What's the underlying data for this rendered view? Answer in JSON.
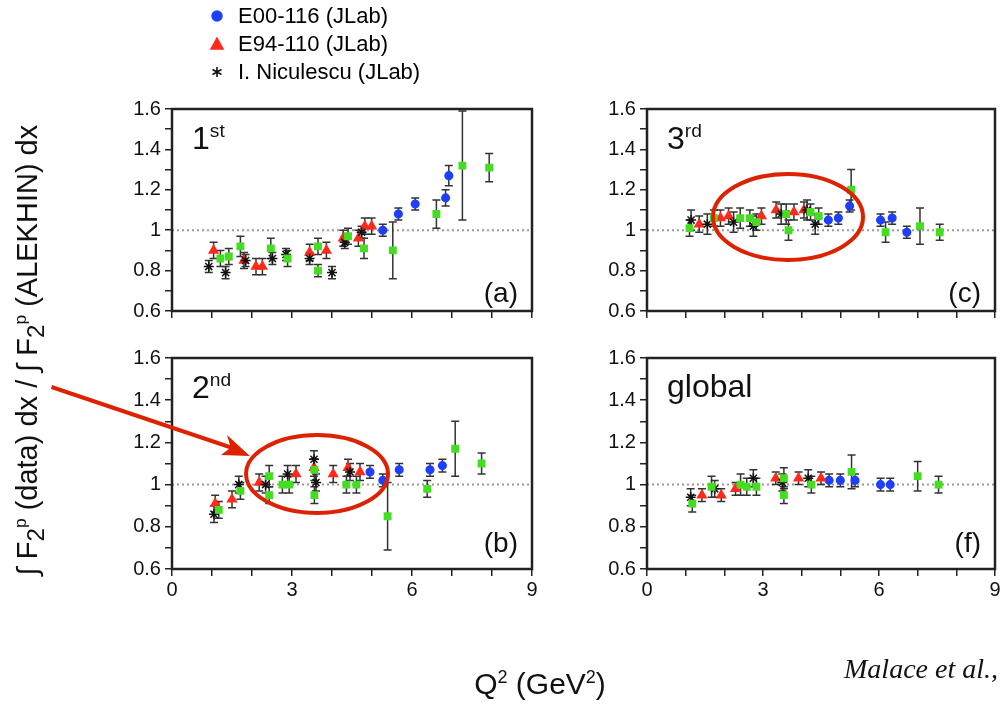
{
  "chart_data": [
    {
      "type": "scatter",
      "ylabel": "∫ F$_{2}$$^{p}$ (data) dx / ∫ F$_{2}$$^{p}$ (ALEKHIN) dx",
      "annotations": [
        "1$^{st}$",
        "(a)"
      ],
      "legend": "top",
      "tick_labels": "y",
      "grid": false,
      "xlim": [
        0,
        9
      ],
      "xticks": [
        0,
        {
          "value": 1,
          "label": null
        },
        {
          "value": 2,
          "label": null
        },
        3,
        {
          "value": 4,
          "label": null
        },
        {
          "value": 5,
          "label": null
        },
        6,
        {
          "value": 7,
          "label": null
        },
        {
          "value": 8,
          "label": null
        },
        9
      ],
      "ylim": [
        0.6,
        1.6
      ],
      "yticks": [
        0.6,
        {
          "value": 0.7,
          "label": null
        },
        0.8,
        {
          "value": 0.9,
          "label": null
        },
        1,
        {
          "value": 1.1,
          "label": null
        },
        1.2,
        {
          "value": 1.3,
          "label": null
        },
        1.4,
        {
          "value": 1.5,
          "label": null
        },
        1.6
      ],
      "ref_lines": [
        {
          "axis": "y",
          "value": 1,
          "line_style": "dotted",
          "color": "#999999"
        }
      ],
      "series": [
        {
          "name": "E00-116 (JLab)",
          "color": "#1f3fff",
          "marker": "circle",
          "x": [
            5.27,
            5.66,
            6.08,
            6.84,
            6.92
          ],
          "values": [
            1.0,
            1.08,
            1.13,
            1.16,
            1.27
          ],
          "errors": [
            0.03,
            0.03,
            0.03,
            0.04,
            0.05
          ]
        },
        {
          "name": "E94-110 (JLab)",
          "color": "#ff2a1a",
          "marker": "triangle",
          "x": [
            1.04,
            1.8,
            2.1,
            2.26,
            3.44,
            3.86,
            4.28,
            4.66,
            4.82,
            4.99
          ],
          "values": [
            0.9,
            0.85,
            0.82,
            0.82,
            0.89,
            0.9,
            0.96,
            0.96,
            1.02,
            1.02
          ],
          "errors": [
            0.04,
            0.04,
            0.04,
            0.04,
            0.04,
            0.04,
            0.04,
            0.04,
            0.04,
            0.04
          ]
        },
        {
          "name": "I. Niculescu (JLab)",
          "color": "#111111",
          "marker": "cross",
          "x": [
            0.92,
            1.34,
            1.84,
            2.51,
            2.85,
            3.44,
            4.0,
            4.32,
            4.74
          ],
          "values": [
            0.82,
            0.79,
            0.85,
            0.86,
            0.88,
            0.86,
            0.79,
            0.94,
            0.99
          ],
          "errors": [
            0.03,
            0.03,
            0.03,
            0.03,
            0.03,
            0.03,
            0.03,
            0.03,
            0.03
          ]
        },
        {
          "color": "#44dd22",
          "marker": "square",
          "x": [
            1.21,
            1.42,
            1.71,
            2.47,
            2.89,
            3.65,
            4.4,
            4.8,
            5.52,
            7.26
          ],
          "values": [
            0.86,
            0.87,
            0.92,
            0.91,
            0.86,
            0.92,
            0.97,
            0.91,
            0.9,
            1.32
          ],
          "errors": [
            0.04,
            0.04,
            0.05,
            0.05,
            0.04,
            0.04,
            0.04,
            0.05,
            0.14,
            0.27
          ]
        },
        {
          "color": "#44dd22",
          "marker": "square",
          "x": [
            3.65,
            6.61,
            7.93
          ],
          "values": [
            0.8,
            1.08,
            1.31
          ],
          "errors": [
            0.03,
            0.07,
            0.07
          ]
        }
      ]
    },
    {
      "type": "scatter",
      "annotations": [
        "3$^{rd}$",
        "(c)"
      ],
      "legend": false,
      "tick_labels": "y",
      "grid": false,
      "xlim": [
        0,
        9
      ],
      "xticks": [
        0,
        {
          "value": 1,
          "label": null
        },
        {
          "value": 2,
          "label": null
        },
        3,
        {
          "value": 4,
          "label": null
        },
        {
          "value": 5,
          "label": null
        },
        6,
        {
          "value": 7,
          "label": null
        },
        {
          "value": 8,
          "label": null
        },
        9
      ],
      "ylim": [
        0.6,
        1.6
      ],
      "yticks": [
        0.6,
        {
          "value": 0.7,
          "label": null
        },
        0.8,
        {
          "value": 0.9,
          "label": null
        },
        1,
        {
          "value": 1.1,
          "label": null
        },
        1.2,
        {
          "value": 1.3,
          "label": null
        },
        1.4,
        {
          "value": 1.5,
          "label": null
        },
        1.6
      ],
      "ref_lines": [
        {
          "axis": "y",
          "value": 1,
          "line_style": "dotted",
          "color": "#999999"
        }
      ],
      "series": [
        {
          "color": "#1f3fff",
          "marker": "circle",
          "x": [
            4.69,
            4.95,
            5.24,
            6.04,
            6.34,
            6.72
          ],
          "values": [
            1.05,
            1.06,
            1.12,
            1.05,
            1.06,
            0.99
          ],
          "errors": [
            0.03,
            0.03,
            0.03,
            0.03,
            0.03,
            0.03
          ]
        },
        {
          "color": "#ff2a1a",
          "marker": "triangle",
          "x": [
            1.35,
            1.9,
            2.11,
            2.96,
            3.34,
            3.8,
            4.06
          ],
          "values": [
            1.03,
            1.06,
            1.07,
            1.07,
            1.1,
            1.09,
            1.1
          ],
          "errors": [
            0.04,
            0.04,
            0.04,
            0.04,
            0.04,
            0.04,
            0.04
          ]
        },
        {
          "color": "#111111",
          "marker": "cross",
          "x": [
            1.14,
            1.56,
            2.24,
            2.75,
            3.47,
            4.14,
            4.35
          ],
          "values": [
            1.05,
            1.03,
            1.04,
            1.02,
            1.08,
            1.1,
            1.03
          ],
          "errors": [
            0.05,
            0.05,
            0.05,
            0.05,
            0.05,
            0.05,
            0.05
          ]
        },
        {
          "color": "#44dd22",
          "marker": "square",
          "x": [
            1.1,
            1.73,
            2.41,
            2.66,
            2.83,
            3.6,
            4.23,
            4.44,
            5.28,
            7.06
          ],
          "values": [
            1.01,
            1.06,
            1.06,
            1.06,
            1.04,
            1.08,
            1.09,
            1.07,
            1.2,
            1.02
          ],
          "errors": [
            0.04,
            0.04,
            0.05,
            0.04,
            0.04,
            0.05,
            0.04,
            0.04,
            0.1,
            0.09
          ]
        },
        {
          "color": "#44dd22",
          "marker": "square",
          "x": [
            3.66,
            6.17,
            7.57
          ],
          "values": [
            1.0,
            0.99,
            0.99
          ],
          "errors": [
            0.05,
            0.05,
            0.04
          ]
        }
      ]
    },
    {
      "type": "scatter",
      "xlabel": "Q$^{2}$ (GeV$^{2}$)",
      "annotations": [
        "2$^{nd}$",
        "(b)"
      ],
      "legend": false,
      "grid": false,
      "xlim": [
        0,
        9
      ],
      "xticks": [
        0,
        {
          "value": 1,
          "label": null
        },
        {
          "value": 2,
          "label": null
        },
        3,
        {
          "value": 4,
          "label": null
        },
        {
          "value": 5,
          "label": null
        },
        6,
        {
          "value": 7,
          "label": null
        },
        {
          "value": 8,
          "label": null
        },
        9
      ],
      "ylim": [
        0.6,
        1.6
      ],
      "yticks": [
        0.6,
        {
          "value": 0.7,
          "label": null
        },
        0.8,
        {
          "value": 0.9,
          "label": null
        },
        1,
        {
          "value": 1.1,
          "label": null
        },
        1.2,
        {
          "value": 1.3,
          "label": null
        },
        1.4,
        {
          "value": 1.5,
          "label": null
        },
        1.6
      ],
      "ref_lines": [
        {
          "axis": "y",
          "value": 1,
          "line_style": "dotted",
          "color": "#999999"
        }
      ],
      "series": [
        {
          "color": "#1f3fff",
          "marker": "circle",
          "x": [
            4.95,
            5.27,
            5.68,
            6.45,
            6.76
          ],
          "values": [
            1.06,
            1.02,
            1.07,
            1.07,
            1.09
          ],
          "errors": [
            0.03,
            0.03,
            0.03,
            0.03,
            0.03
          ]
        },
        {
          "color": "#ff2a1a",
          "marker": "triangle",
          "x": [
            1.08,
            1.5,
            2.18,
            3.1,
            3.55,
            4.03,
            4.4,
            4.7
          ],
          "values": [
            0.91,
            0.93,
            1.01,
            1.05,
            1.08,
            1.05,
            1.08,
            1.06
          ],
          "errors": [
            0.04,
            0.04,
            0.04,
            0.04,
            0.04,
            0.04,
            0.04,
            0.04
          ]
        },
        {
          "color": "#111111",
          "marker": "cross",
          "x": [
            1.05,
            1.67,
            2.34,
            2.89,
            3.55,
            3.6,
            4.45
          ],
          "values": [
            0.86,
            1.0,
            1.0,
            1.05,
            1.12,
            1.01,
            1.06
          ],
          "errors": [
            0.04,
            0.04,
            0.04,
            0.04,
            0.04,
            0.04,
            0.04
          ]
        },
        {
          "color": "#44dd22",
          "marker": "square",
          "x": [
            1.17,
            1.71,
            2.43,
            2.76,
            2.93,
            3.56,
            4.36,
            4.61,
            5.39,
            7.08
          ],
          "values": [
            0.88,
            0.97,
            1.04,
            1.0,
            1.0,
            1.07,
            1.0,
            1.0,
            0.85,
            1.17
          ],
          "errors": [
            0.04,
            0.04,
            0.05,
            0.04,
            0.04,
            0.05,
            0.04,
            0.04,
            0.16,
            0.13
          ]
        },
        {
          "color": "#44dd22",
          "marker": "square",
          "x": [
            2.43,
            3.56,
            6.38,
            7.74
          ],
          "values": [
            0.95,
            0.95,
            0.98,
            1.1
          ],
          "errors": [
            0.04,
            0.04,
            0.04,
            0.05
          ]
        }
      ]
    },
    {
      "type": "scatter",
      "annotations": [
        "global",
        "(f)",
        "Malace et al.,"
      ],
      "legend": false,
      "grid": false,
      "xlim": [
        0,
        9
      ],
      "xticks": [
        0,
        {
          "value": 1,
          "label": null
        },
        {
          "value": 2,
          "label": null
        },
        3,
        {
          "value": 4,
          "label": null
        },
        {
          "value": 5,
          "label": null
        },
        6,
        {
          "value": 7,
          "label": null
        },
        {
          "value": 8,
          "label": null
        },
        9
      ],
      "ylim": [
        0.6,
        1.6
      ],
      "yticks": [
        0.6,
        {
          "value": 0.7,
          "label": null
        },
        0.8,
        {
          "value": 0.9,
          "label": null
        },
        1,
        {
          "value": 1.1,
          "label": null
        },
        1.2,
        {
          "value": 1.3,
          "label": null
        },
        1.4,
        {
          "value": 1.5,
          "label": null
        },
        1.6
      ],
      "ref_lines": [
        {
          "axis": "y",
          "value": 1,
          "line_style": "dotted",
          "color": "#999999"
        }
      ],
      "series": [
        {
          "color": "#1f3fff",
          "marker": "circle",
          "x": [
            4.71,
            5.0,
            5.38,
            6.04,
            6.29
          ],
          "values": [
            1.02,
            1.02,
            1.02,
            1.0,
            1.0
          ],
          "errors": [
            0.03,
            0.03,
            0.03,
            0.03,
            0.03
          ]
        },
        {
          "color": "#ff2a1a",
          "marker": "triangle",
          "x": [
            1.42,
            1.92,
            2.29,
            3.33,
            3.92,
            4.5
          ],
          "values": [
            0.95,
            0.95,
            0.98,
            1.03,
            1.03,
            1.03
          ],
          "errors": [
            0.03,
            0.03,
            0.03,
            0.03,
            0.03,
            0.03
          ]
        },
        {
          "color": "#111111",
          "marker": "cross",
          "x": [
            1.13,
            1.75,
            2.75,
            3.5,
            4.17
          ],
          "values": [
            0.94,
            0.98,
            1.03,
            1.01,
            1.03
          ],
          "errors": [
            0.04,
            0.04,
            0.04,
            0.04,
            0.04
          ]
        },
        {
          "color": "#44dd22",
          "marker": "square",
          "x": [
            1.17,
            1.67,
            2.42,
            2.83,
            3.54,
            4.25,
            5.29,
            7.0
          ],
          "values": [
            0.91,
            0.99,
            1.0,
            0.99,
            1.03,
            1.0,
            1.06,
            1.04
          ],
          "errors": [
            0.04,
            0.05,
            0.05,
            0.04,
            0.05,
            0.04,
            0.08,
            0.07
          ]
        },
        {
          "color": "#44dd22",
          "marker": "square",
          "x": [
            2.58,
            3.54,
            7.54
          ],
          "values": [
            0.99,
            0.95,
            1.0
          ],
          "errors": [
            0.04,
            0.04,
            0.04
          ]
        }
      ]
    }
  ]
}
